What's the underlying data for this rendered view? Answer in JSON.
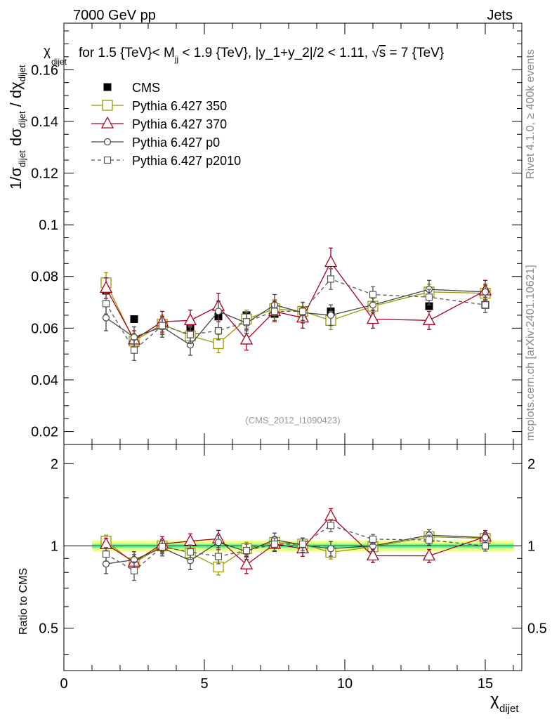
{
  "header": {
    "energy_label": "7000 GeV pp",
    "category_label": "Jets"
  },
  "side": {
    "rivet_label": "Rivet 4.1.0, ≥ 400k events",
    "mcplots_label": "mcplots.cern.ch [arXiv:2401.10621]"
  },
  "chart_data": {
    "type": "scatter",
    "title_prefix": "for 1.5 {TeV}< M",
    "title_sub": "jj",
    "title_middle": " < 1.9 {TeV}, |y_1+y_2|/2 < 1.11, ",
    "title_sqrt": "√",
    "title_s": "s",
    "title_suffix": " = 7 {TeV}",
    "ylabel_main": "1/σdijet dσdijet / dχdijet",
    "ylabel_ratio": "Ratio to CMS",
    "xlabel": "χdijet",
    "watermark": "(CMS_2012_I1090423)",
    "xlim": [
      0,
      16.3
    ],
    "ylim_main": [
      0.015,
      0.178
    ],
    "ylim_ratio": [
      0.35,
      2.35
    ],
    "ratio_ref_label": "1",
    "x": [
      1.5,
      2.5,
      3.5,
      4.5,
      5.5,
      6.5,
      7.5,
      8.5,
      9.5,
      11,
      13,
      15
    ],
    "x_err": [
      0.5,
      0.5,
      0.5,
      0.5,
      0.5,
      0.5,
      0.5,
      0.5,
      0.5,
      1,
      1,
      1
    ],
    "main_y_ticks": [
      "0.02",
      "0.04",
      "0.06",
      "0.08",
      "0.1",
      "0.12",
      "0.14",
      "0.16"
    ],
    "x_ticks": [
      "0",
      "5",
      "10",
      "15"
    ],
    "ratio_y_ticks": [
      "0.5",
      "1",
      "2"
    ],
    "data_series": {
      "name": "CMS",
      "color": "#000000",
      "values": [
        0.0745,
        0.0635,
        0.0615,
        0.0605,
        0.0645,
        0.065,
        0.0655,
        0.0655,
        0.0665,
        0.069,
        0.0685,
        0.069
      ],
      "errors": [
        0.001,
        0.001,
        0.001,
        0.001,
        0.001,
        0.001,
        0.001,
        0.001,
        0.001,
        0.001,
        0.001,
        0.001
      ]
    },
    "band_inner_halfwidth": 0.018,
    "band_outer_halfwidth": 0.045,
    "band_inner_color": "#66ff99",
    "band_outer_color": "#eeff88",
    "series": [
      {
        "name": "Pythia 6.427 350",
        "color": "#999900",
        "marker": "square-open",
        "dashed": false,
        "values": [
          0.0775,
          0.055,
          0.0615,
          0.057,
          0.054,
          0.0635,
          0.0675,
          0.0665,
          0.063,
          0.0685,
          0.074,
          0.0735
        ],
        "errors": [
          0.004,
          0.003,
          0.0035,
          0.0035,
          0.0035,
          0.0035,
          0.0035,
          0.0035,
          0.0035,
          0.003,
          0.003,
          0.003
        ]
      },
      {
        "name": "Pythia 6.427 370",
        "color": "#aa0022",
        "marker": "triangle-open",
        "dashed": false,
        "values": [
          0.0755,
          0.0555,
          0.0625,
          0.063,
          0.0685,
          0.0555,
          0.0665,
          0.064,
          0.0855,
          0.0635,
          0.063,
          0.0745
        ],
        "errors": [
          0.004,
          0.0035,
          0.004,
          0.004,
          0.005,
          0.004,
          0.004,
          0.004,
          0.0055,
          0.0035,
          0.0035,
          0.004
        ]
      },
      {
        "name": "Pythia 6.427 p0",
        "color": "#444444",
        "marker": "circle-open",
        "dashed": false,
        "values": [
          0.064,
          0.0565,
          0.0605,
          0.0535,
          0.0665,
          0.062,
          0.069,
          0.066,
          0.065,
          0.069,
          0.075,
          0.074
        ],
        "errors": [
          0.005,
          0.004,
          0.004,
          0.004,
          0.004,
          0.004,
          0.004,
          0.004,
          0.004,
          0.003,
          0.0035,
          0.003
        ]
      },
      {
        "name": "Pythia 6.427 p2010",
        "color": "#555555",
        "marker": "square-open-small",
        "dashed": true,
        "values": [
          0.0695,
          0.0515,
          0.061,
          0.0575,
          0.059,
          0.0625,
          0.0665,
          0.0665,
          0.079,
          0.073,
          0.072,
          0.069
        ],
        "errors": [
          0.004,
          0.004,
          0.0035,
          0.0035,
          0.0035,
          0.0035,
          0.0035,
          0.0035,
          0.004,
          0.003,
          0.003,
          0.003
        ]
      }
    ]
  }
}
